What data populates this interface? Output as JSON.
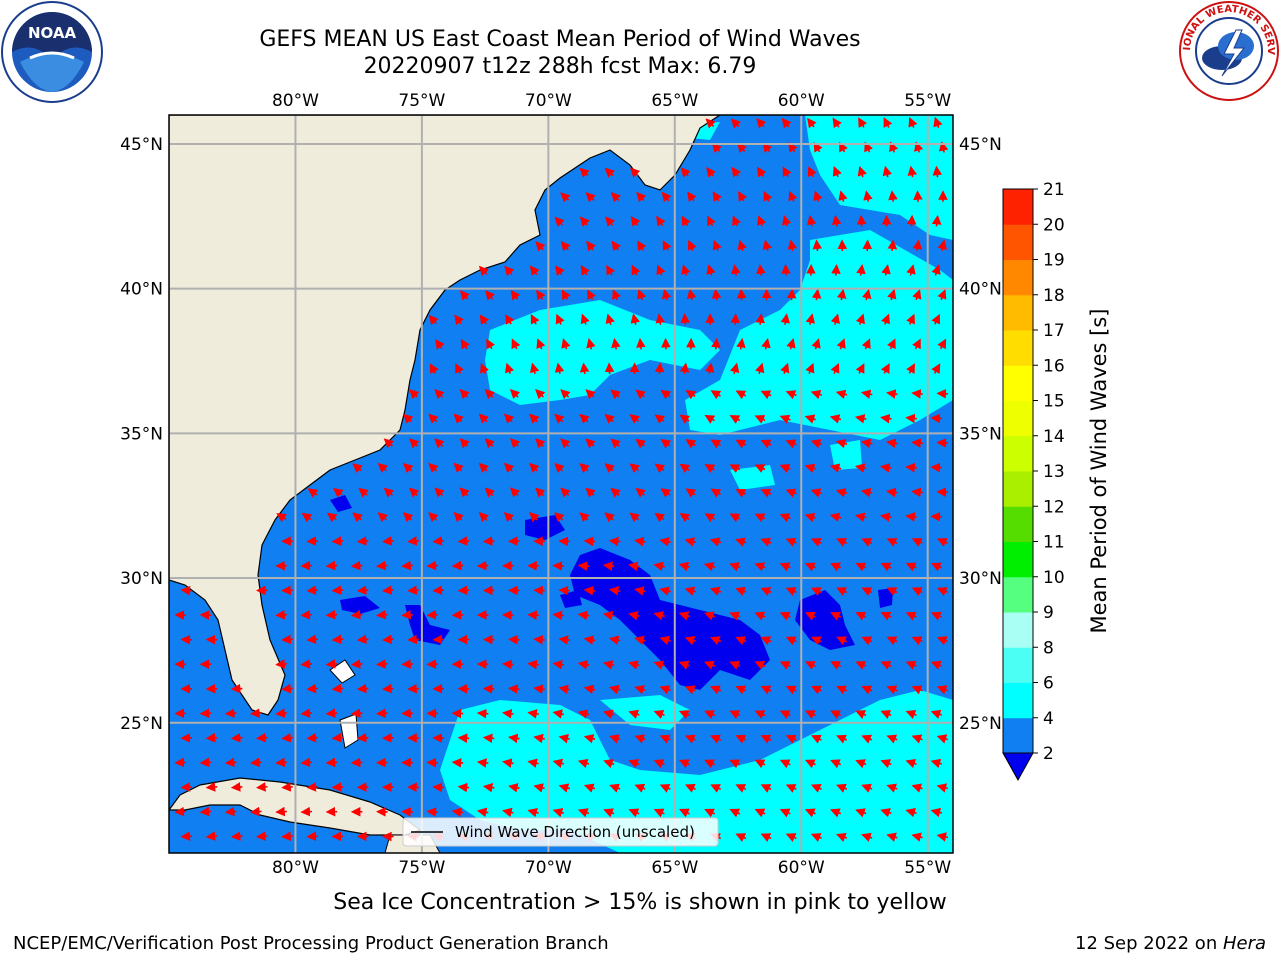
{
  "title": {
    "line1": "GEFS MEAN US East Coast Mean Period of Wind Waves",
    "line2": "20220907 t12z 288h fcst   Max: 6.79"
  },
  "logos": {
    "left": "noaa-logo",
    "left_text": "NOAA",
    "right": "nws-logo",
    "right_text": "NATIONAL WEATHER SERVICE"
  },
  "map": {
    "lon_range": [
      -85,
      -54
    ],
    "lat_range": [
      20.5,
      46
    ],
    "lon_ticks": [
      -80,
      -75,
      -70,
      -65,
      -60,
      -55
    ],
    "lon_tick_labels": [
      "80°W",
      "75°W",
      "70°W",
      "65°W",
      "60°W",
      "55°W"
    ],
    "lat_ticks": [
      25,
      30,
      35,
      40,
      45
    ],
    "lat_tick_labels": [
      "25°N",
      "30°N",
      "35°N",
      "40°N",
      "45°N"
    ],
    "land_color": "#efecdc",
    "ocean_color": "#0f7ff2",
    "cyan_color": "#00ffff",
    "dark_blue_color": "#0000ee",
    "grid_color": "#b0b0b0",
    "arrow_color": "#ff0000",
    "legend_label": "Wind Wave Direction (unscaled)"
  },
  "colorbar": {
    "label": "Mean Period of Wind Waves [s]",
    "tick_labels": [
      "2",
      "4",
      "6",
      "8",
      "9",
      "10",
      "11",
      "12",
      "13",
      "14",
      "15",
      "16",
      "17",
      "18",
      "19",
      "20",
      "21"
    ],
    "under_color": "#0000ee",
    "colors": [
      "#0f7ff2",
      "#00ffff",
      "#4cfff5",
      "#aafff5",
      "#55ff80",
      "#00ee00",
      "#55dd00",
      "#aaee00",
      "#ccff00",
      "#eeff00",
      "#ffff00",
      "#ffdd00",
      "#ffbb00",
      "#ff8800",
      "#ff5500",
      "#ff2200"
    ]
  },
  "footer": {
    "sea_ice_note": "Sea Ice Concentration > 15% is shown in pink to yellow",
    "credit_left": "NCEP/EMC/Verification Post Processing Product Generation Branch",
    "credit_right_date": "12 Sep 2022 on ",
    "credit_right_machine": "Hera"
  }
}
